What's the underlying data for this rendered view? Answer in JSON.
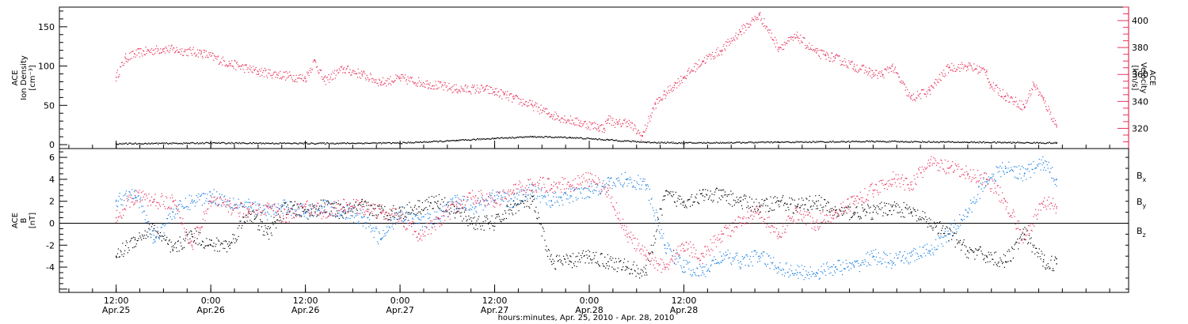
{
  "chart_data": [
    {
      "type": "scatter",
      "panel": "top",
      "ylabel_left": [
        "ACE",
        "Ion Density",
        "[cm⁻³]"
      ],
      "ylabel_right": [
        "ACE",
        "Velocity",
        "[km/s]"
      ],
      "ylim_left": [
        -5,
        175
      ],
      "ylim_right": [
        305,
        410
      ],
      "yticks_left": [
        0,
        50,
        100,
        150
      ],
      "yticks_right": [
        320,
        340,
        360,
        380,
        400
      ],
      "colors": {
        "velocity": "#e6325a",
        "density": "#000000"
      },
      "series": [
        {
          "name": "Velocity",
          "axis": "right",
          "x": [
            0,
            0.05,
            0.12,
            0.25,
            0.45,
            0.6,
            0.75,
            0.85,
            1.0,
            1.05,
            1.1,
            1.2,
            1.3,
            1.4,
            1.5,
            1.65,
            1.8,
            1.95,
            2.0,
            2.05,
            2.1,
            2.2,
            2.3,
            2.45,
            2.55,
            2.58,
            2.6,
            2.65,
            2.7,
            2.78,
            2.85,
            2.9,
            2.95,
            3.0,
            3.1,
            3.2,
            3.3,
            3.4,
            3.5,
            3.6,
            3.7,
            3.75,
            3.8,
            3.9,
            3.98,
            4.0,
            4.05,
            4.1,
            4.2,
            4.3,
            4.4,
            4.5,
            4.6,
            4.62,
            4.7,
            4.8,
            4.85,
            4.9,
            4.97
          ],
          "y": [
            358,
            372,
            376,
            379,
            376,
            368,
            362,
            360,
            357,
            370,
            355,
            364,
            360,
            354,
            357,
            353,
            349,
            349,
            347,
            345,
            342,
            337,
            330,
            324,
            321,
            320,
            327,
            323,
            325,
            314,
            338,
            345,
            352,
            358,
            370,
            378,
            392,
            404,
            380,
            388,
            376,
            374,
            372,
            366,
            362,
            360,
            360,
            366,
            342,
            348,
            365,
            366,
            362,
            352,
            344,
            336,
            353,
            341,
            322
          ]
        },
        {
          "name": "Ion Density",
          "axis": "left",
          "x": [
            0,
            0.5,
            1.0,
            1.5,
            1.8,
            2.0,
            2.2,
            2.4,
            2.6,
            2.8,
            3.0,
            3.5,
            4.0,
            4.5,
            4.97
          ],
          "y": [
            1,
            2,
            1.5,
            2,
            5,
            8,
            10,
            9,
            6,
            3,
            2,
            3,
            4,
            3,
            2
          ]
        }
      ]
    },
    {
      "type": "scatter",
      "panel": "bottom",
      "ylabel": [
        "ACE",
        "B",
        "[nT]"
      ],
      "ylim": [
        -6.3,
        6.8
      ],
      "yticks": [
        -4,
        -2,
        0,
        2,
        4,
        6
      ],
      "zero_line": true,
      "legend": [
        {
          "label": "Bx",
          "base": "B",
          "sub": "x",
          "color": "#000000"
        },
        {
          "label": "By",
          "base": "B",
          "sub": "y",
          "color": "#1a7fe0"
        },
        {
          "label": "Bz",
          "base": "B",
          "sub": "z",
          "color": "#e6325a"
        }
      ],
      "series": [
        {
          "name": "Bx",
          "color": "#000000",
          "x": [
            0,
            0.1,
            0.2,
            0.3,
            0.4,
            0.5,
            0.6,
            0.7,
            0.8,
            0.9,
            1.0,
            1.1,
            1.2,
            1.3,
            1.4,
            1.5,
            1.6,
            1.7,
            1.8,
            1.9,
            2.0,
            2.1,
            2.2,
            2.3,
            2.4,
            2.5,
            2.6,
            2.7,
            2.8,
            2.9,
            3.0,
            3.1,
            3.2,
            3.3,
            3.4,
            3.5,
            3.6,
            3.7,
            3.8,
            3.9,
            4.0,
            4.1,
            4.2,
            4.3,
            4.4,
            4.5,
            4.6,
            4.7,
            4.8,
            4.9,
            4.97
          ],
          "y": [
            -3,
            -1.5,
            -0.5,
            -2.5,
            -1,
            -2,
            -2,
            1,
            -1,
            1.5,
            1,
            1.5,
            1,
            1.5,
            1,
            1,
            1.5,
            2,
            1,
            0,
            0,
            1.5,
            2,
            -3.5,
            -3.5,
            -3,
            -3.5,
            -4,
            -4.5,
            2.5,
            2,
            2.5,
            2.5,
            2,
            1.5,
            2,
            1.5,
            2,
            1,
            1,
            1,
            1.5,
            1,
            0,
            -1,
            -2.5,
            -3,
            -3.5,
            -1,
            -3.5,
            -3.7
          ]
        },
        {
          "name": "By",
          "color": "#1a7fe0",
          "x": [
            0,
            0.1,
            0.2,
            0.3,
            0.4,
            0.5,
            0.6,
            0.7,
            0.8,
            0.9,
            1.0,
            1.1,
            1.2,
            1.3,
            1.4,
            1.5,
            1.6,
            1.7,
            1.8,
            1.9,
            2.0,
            2.1,
            2.2,
            2.3,
            2.4,
            2.5,
            2.6,
            2.7,
            2.8,
            2.9,
            3.0,
            3.1,
            3.2,
            3.3,
            3.4,
            3.5,
            3.6,
            3.7,
            3.8,
            3.9,
            4.0,
            4.1,
            4.2,
            4.3,
            4.4,
            4.5,
            4.6,
            4.7,
            4.8,
            4.9,
            4.97
          ],
          "y": [
            2,
            3,
            -1.5,
            1,
            2,
            2.5,
            2,
            1.5,
            1,
            1.5,
            1,
            1.5,
            1,
            0.5,
            -1.5,
            1,
            0,
            0.5,
            2,
            1.5,
            2.5,
            2,
            3,
            2,
            2.5,
            3,
            3.5,
            4,
            3.5,
            -2,
            -4,
            -4.5,
            -3,
            -3.5,
            -3,
            -4,
            -4.5,
            -4.5,
            -4,
            -4,
            -3,
            -3.5,
            -3,
            -2.5,
            -1,
            1,
            4,
            5,
            4.5,
            5.5,
            4
          ]
        },
        {
          "name": "Bz",
          "color": "#e6325a",
          "x": [
            0,
            0.1,
            0.2,
            0.3,
            0.4,
            0.5,
            0.6,
            0.7,
            0.8,
            0.9,
            1.0,
            1.1,
            1.2,
            1.3,
            1.4,
            1.5,
            1.6,
            1.7,
            1.8,
            1.9,
            2.0,
            2.1,
            2.2,
            2.3,
            2.4,
            2.5,
            2.6,
            2.7,
            2.8,
            2.9,
            3.0,
            3.1,
            3.2,
            3.3,
            3.4,
            3.5,
            3.6,
            3.7,
            3.8,
            3.9,
            4.0,
            4.1,
            4.2,
            4.3,
            4.4,
            4.5,
            4.6,
            4.7,
            4.8,
            4.9,
            4.97
          ],
          "y": [
            0.5,
            2.5,
            2,
            2,
            -2,
            2,
            1.5,
            1,
            1.5,
            0.5,
            1.5,
            1,
            1.5,
            1.5,
            1,
            0.5,
            -1,
            0,
            1.5,
            2.5,
            2,
            3,
            3.5,
            3.5,
            3.5,
            4,
            3,
            -1,
            -3,
            -4,
            -2,
            -3,
            -1,
            0,
            1,
            -1,
            1,
            0,
            1,
            2,
            3,
            4,
            3.5,
            5.5,
            5,
            4.5,
            4,
            2,
            -1.5,
            2,
            1.5
          ]
        }
      ]
    }
  ],
  "x_axis": {
    "range_days": [
      -0.3,
      5.35
    ],
    "ticks": [
      {
        "x": 0,
        "time": "12:00",
        "date": "Apr.25"
      },
      {
        "x": 0.5,
        "time": "0:00",
        "date": "Apr.26"
      },
      {
        "x": 1.0,
        "time": "12:00",
        "date": "Apr.26"
      },
      {
        "x": 1.5,
        "time": "0:00",
        "date": "Apr.27"
      },
      {
        "x": 2.0,
        "time": "12:00",
        "date": "Apr.27"
      },
      {
        "x": 2.5,
        "time": "0:00",
        "date": "Apr.28"
      },
      {
        "x": 3.0,
        "time": "12:00",
        "date": "Apr.28"
      }
    ],
    "xlabel": "hours:minutes, Apr. 25, 2010 - Apr. 28, 2010"
  }
}
